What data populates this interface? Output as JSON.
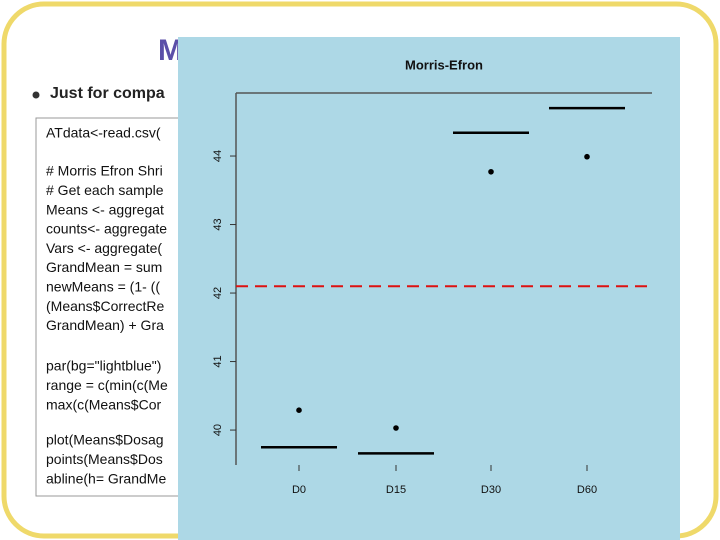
{
  "slide": {
    "title": "M",
    "bullet": "Just for compa",
    "code": [
      [
        "ATdata<-read.csv("
      ],
      [
        "# Morris Efron Shri",
        "# Get each sample",
        "Means <- aggregat",
        "counts<- aggregate",
        "Vars <- aggregate(",
        "GrandMean = sum",
        "newMeans = (1-  ((",
        "(Means$CorrectRe",
        "GrandMean) + Gra"
      ],
      [
        "par(bg=\"lightblue\")",
        "range = c(min(c(Me",
        "max(c(Means$Cor"
      ],
      [
        "plot(Means$Dosag",
        "points(Means$Dos",
        "abline(h= GrandMe"
      ]
    ]
  },
  "chart_data": {
    "type": "point-segment",
    "title": "Morris-Efron",
    "categories": [
      "D0",
      "D15",
      "D30",
      "D60"
    ],
    "points": {
      "values": [
        40.29,
        40.03,
        43.77,
        43.99
      ],
      "color": "#000000"
    },
    "segments": {
      "values": [
        39.75,
        39.66,
        44.34,
        44.7
      ],
      "color": "#000000"
    },
    "hline": {
      "value": 42.1,
      "color": "#dd1111"
    },
    "ylim": [
      39.49,
      44.92
    ],
    "yticks": [
      40,
      41,
      42,
      43,
      44
    ],
    "background": "#add8e6"
  }
}
